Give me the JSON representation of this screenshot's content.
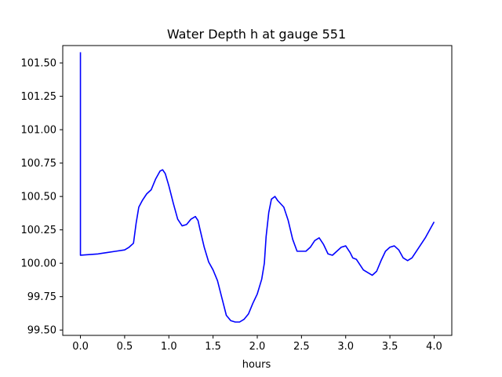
{
  "chart_data": {
    "type": "line",
    "title": "Water Depth h at gauge 551",
    "xlabel": "hours",
    "ylabel": "",
    "xlim": [
      -0.2,
      4.2
    ],
    "ylim": [
      99.46,
      101.63
    ],
    "xticks": [
      0.0,
      0.5,
      1.0,
      1.5,
      2.0,
      2.5,
      3.0,
      3.5,
      4.0
    ],
    "xtick_labels": [
      "0.0",
      "0.5",
      "1.0",
      "1.5",
      "2.0",
      "2.5",
      "3.0",
      "3.5",
      "4.0"
    ],
    "yticks": [
      99.5,
      99.75,
      100.0,
      100.25,
      100.5,
      100.75,
      101.0,
      101.25,
      101.5
    ],
    "ytick_labels": [
      "99.50",
      "99.75",
      "100.00",
      "100.25",
      "100.50",
      "100.75",
      "101.00",
      "101.25",
      "101.50"
    ],
    "grid": false,
    "series": [
      {
        "color": "#0000ff",
        "x": [
          0.0,
          0.0,
          0.0,
          0.2,
          0.3,
          0.4,
          0.5,
          0.55,
          0.6,
          0.63,
          0.66,
          0.7,
          0.75,
          0.8,
          0.85,
          0.9,
          0.93,
          0.96,
          1.0,
          1.05,
          1.1,
          1.15,
          1.2,
          1.25,
          1.3,
          1.33,
          1.35,
          1.4,
          1.45,
          1.5,
          1.55,
          1.6,
          1.65,
          1.7,
          1.75,
          1.8,
          1.85,
          1.9,
          1.95,
          2.0,
          2.05,
          2.08,
          2.1,
          2.13,
          2.16,
          2.2,
          2.23,
          2.3,
          2.35,
          2.4,
          2.45,
          2.5,
          2.55,
          2.6,
          2.65,
          2.7,
          2.75,
          2.8,
          2.85,
          2.9,
          2.95,
          3.0,
          3.05,
          3.08,
          3.12,
          3.15,
          3.2,
          3.25,
          3.3,
          3.35,
          3.4,
          3.45,
          3.5,
          3.55,
          3.6,
          3.65,
          3.7,
          3.75,
          3.8,
          3.85,
          3.9,
          3.95,
          4.0
        ],
        "y": [
          101.58,
          100.07,
          100.06,
          100.07,
          100.08,
          100.09,
          100.1,
          100.12,
          100.15,
          100.3,
          100.42,
          100.47,
          100.52,
          100.55,
          100.63,
          100.69,
          100.7,
          100.67,
          100.58,
          100.45,
          100.33,
          100.28,
          100.29,
          100.33,
          100.35,
          100.32,
          100.26,
          100.12,
          100.01,
          99.95,
          99.87,
          99.74,
          99.61,
          99.57,
          99.56,
          99.56,
          99.58,
          99.62,
          99.7,
          99.77,
          99.88,
          100.0,
          100.2,
          100.38,
          100.48,
          100.5,
          100.47,
          100.42,
          100.32,
          100.18,
          100.09,
          100.09,
          100.09,
          100.12,
          100.17,
          100.19,
          100.14,
          100.07,
          100.06,
          100.09,
          100.12,
          100.13,
          100.08,
          100.04,
          100.03,
          100.0,
          99.95,
          99.93,
          99.91,
          99.94,
          100.02,
          100.09,
          100.12,
          100.13,
          100.1,
          100.04,
          100.02,
          100.04,
          100.09,
          100.14,
          100.19,
          100.25,
          100.31
        ]
      }
    ]
  }
}
